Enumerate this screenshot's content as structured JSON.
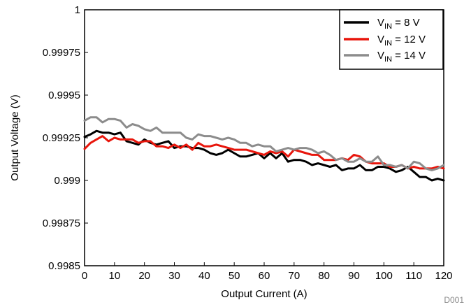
{
  "chart_data": {
    "type": "line",
    "title": "",
    "xlabel": "Output Current (A)",
    "ylabel": "Output Voltage (V)",
    "xlim": [
      0,
      120
    ],
    "ylim": [
      0.9985,
      1.0
    ],
    "x_ticks": [
      "0",
      "10",
      "20",
      "30",
      "40",
      "50",
      "60",
      "70",
      "80",
      "90",
      "100",
      "110",
      "120"
    ],
    "y_ticks": [
      "1",
      "0.99975",
      "0.9995",
      "0.99925",
      "0.999",
      "0.99875",
      "0.9985"
    ],
    "grid": false,
    "legend_position": "top-right",
    "figure_code": "D001",
    "series": [
      {
        "name_main": "V",
        "name_sub": "IN",
        "name_rest": " = 8 V",
        "color": "#000000",
        "x": [
          0,
          2,
          4,
          6,
          8,
          10,
          12,
          14,
          16,
          18,
          20,
          22,
          24,
          26,
          28,
          30,
          32,
          34,
          36,
          38,
          40,
          42,
          44,
          46,
          48,
          50,
          52,
          54,
          56,
          58,
          60,
          62,
          64,
          66,
          68,
          70,
          72,
          74,
          76,
          78,
          80,
          82,
          84,
          86,
          88,
          90,
          92,
          94,
          96,
          98,
          100,
          102,
          104,
          106,
          108,
          110,
          112,
          114,
          116,
          118,
          120
        ],
        "y": [
          0.999255,
          0.99927,
          0.99929,
          0.99928,
          0.99928,
          0.99927,
          0.99928,
          0.99923,
          0.99922,
          0.99921,
          0.99924,
          0.99922,
          0.99921,
          0.99922,
          0.99923,
          0.99919,
          0.9992,
          0.9992,
          0.99919,
          0.99919,
          0.99918,
          0.99916,
          0.99915,
          0.99916,
          0.99918,
          0.99916,
          0.99914,
          0.99914,
          0.99915,
          0.99916,
          0.99913,
          0.99916,
          0.99913,
          0.99916,
          0.99911,
          0.99912,
          0.99912,
          0.99911,
          0.99909,
          0.9991,
          0.99909,
          0.99908,
          0.99909,
          0.99906,
          0.99907,
          0.99907,
          0.99909,
          0.99906,
          0.99906,
          0.99908,
          0.99908,
          0.99907,
          0.99905,
          0.99906,
          0.99908,
          0.99905,
          0.99902,
          0.99902,
          0.999,
          0.99901,
          0.999
        ]
      },
      {
        "name_main": "V",
        "name_sub": "IN",
        "name_rest": " = 12 V",
        "color": "#e8160c",
        "x": [
          0,
          2,
          4,
          6,
          8,
          10,
          12,
          14,
          16,
          18,
          20,
          22,
          24,
          26,
          28,
          30,
          32,
          34,
          36,
          38,
          40,
          42,
          44,
          46,
          48,
          50,
          52,
          54,
          56,
          58,
          60,
          62,
          64,
          66,
          68,
          70,
          72,
          74,
          76,
          78,
          80,
          82,
          84,
          86,
          88,
          90,
          92,
          94,
          96,
          98,
          100,
          102,
          104,
          106,
          108,
          110,
          112,
          114,
          116,
          118,
          120
        ],
        "y": [
          0.999185,
          0.99922,
          0.99924,
          0.99926,
          0.99923,
          0.99925,
          0.99924,
          0.99924,
          0.99924,
          0.99922,
          0.99923,
          0.99923,
          0.9992,
          0.9992,
          0.99919,
          0.99921,
          0.99919,
          0.99921,
          0.99918,
          0.99922,
          0.9992,
          0.9992,
          0.99921,
          0.9992,
          0.99919,
          0.99918,
          0.99918,
          0.99918,
          0.99917,
          0.99916,
          0.99915,
          0.99917,
          0.99916,
          0.99917,
          0.99914,
          0.99918,
          0.99917,
          0.99916,
          0.99915,
          0.99915,
          0.99912,
          0.99912,
          0.99912,
          0.99913,
          0.99912,
          0.99915,
          0.99914,
          0.99911,
          0.9991,
          0.9991,
          0.9991,
          0.99908,
          0.99908,
          0.99909,
          0.99907,
          0.99908,
          0.99907,
          0.99907,
          0.99907,
          0.99908,
          0.99907
        ]
      },
      {
        "name_main": "V",
        "name_sub": "IN",
        "name_rest": " = 14 V",
        "color": "#8c8c8c",
        "x": [
          0,
          2,
          4,
          6,
          8,
          10,
          12,
          14,
          16,
          18,
          20,
          22,
          24,
          26,
          28,
          30,
          32,
          34,
          36,
          38,
          40,
          42,
          44,
          46,
          48,
          50,
          52,
          54,
          56,
          58,
          60,
          62,
          64,
          66,
          68,
          70,
          72,
          74,
          76,
          78,
          80,
          82,
          84,
          86,
          88,
          90,
          92,
          94,
          96,
          98,
          100,
          102,
          104,
          106,
          108,
          110,
          112,
          114,
          116,
          118,
          120
        ],
        "y": [
          0.99935,
          0.99937,
          0.99937,
          0.99934,
          0.99936,
          0.99936,
          0.99935,
          0.99931,
          0.99933,
          0.99932,
          0.9993,
          0.99929,
          0.99931,
          0.99928,
          0.99928,
          0.99928,
          0.99928,
          0.99925,
          0.99924,
          0.99927,
          0.99926,
          0.99926,
          0.99925,
          0.99924,
          0.99925,
          0.99924,
          0.99922,
          0.99922,
          0.9992,
          0.99921,
          0.9992,
          0.9992,
          0.99917,
          0.99918,
          0.99919,
          0.99918,
          0.99919,
          0.99919,
          0.99918,
          0.99916,
          0.99917,
          0.99915,
          0.99912,
          0.99913,
          0.99911,
          0.99911,
          0.99913,
          0.99911,
          0.99911,
          0.99914,
          0.99909,
          0.99909,
          0.99908,
          0.99909,
          0.99907,
          0.99911,
          0.9991,
          0.99907,
          0.99906,
          0.99907,
          0.99909
        ]
      }
    ]
  }
}
